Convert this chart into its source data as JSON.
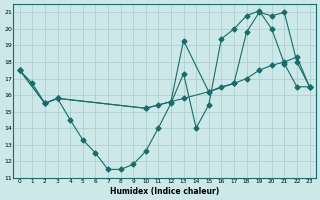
{
  "xlabel": "Humidex (Indice chaleur)",
  "xlim": [
    -0.5,
    23.5
  ],
  "ylim": [
    11,
    21.5
  ],
  "yticks": [
    11,
    12,
    13,
    14,
    15,
    16,
    17,
    18,
    19,
    20,
    21
  ],
  "xticks": [
    0,
    1,
    2,
    3,
    4,
    5,
    6,
    7,
    8,
    9,
    10,
    11,
    12,
    13,
    14,
    15,
    16,
    17,
    18,
    19,
    20,
    21,
    22,
    23
  ],
  "background_color": "#cce8e8",
  "grid_color": "#aacccc",
  "line_color": "#1a6b6b",
  "line1_x": [
    0,
    1,
    2,
    3,
    4,
    5,
    6,
    7,
    8,
    9,
    10,
    11,
    12,
    13,
    14,
    15,
    16,
    17,
    18,
    19,
    20,
    21,
    22,
    23
  ],
  "line1_y": [
    17.5,
    16.7,
    15.5,
    15.8,
    14.5,
    13.3,
    12.5,
    11.5,
    11.5,
    11.8,
    12.6,
    14.0,
    15.5,
    17.3,
    14.0,
    15.4,
    19.4,
    20.0,
    20.8,
    21.1,
    20.0,
    17.9,
    16.5,
    16.5
  ],
  "line2_x": [
    0,
    2,
    3,
    10,
    11,
    12,
    13,
    15,
    16,
    17,
    18,
    19,
    20,
    21,
    22,
    23
  ],
  "line2_y": [
    17.5,
    15.5,
    15.8,
    15.2,
    15.4,
    15.6,
    19.3,
    16.2,
    16.5,
    16.7,
    19.8,
    21.0,
    20.8,
    21.0,
    18.0,
    16.5
  ],
  "line3_x": [
    0,
    2,
    3,
    10,
    13,
    15,
    17,
    18,
    19,
    20,
    21,
    22,
    23
  ],
  "line3_y": [
    17.5,
    15.5,
    15.8,
    15.2,
    15.8,
    16.2,
    16.7,
    17.0,
    17.5,
    17.8,
    18.0,
    18.3,
    16.5
  ],
  "marker": "D",
  "markersize": 2.5
}
